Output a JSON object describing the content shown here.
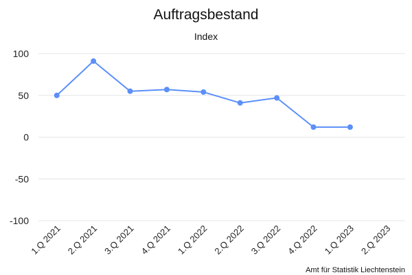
{
  "chart_data": {
    "type": "line",
    "title": "Auftragsbestand",
    "subtitle": "Index",
    "categories": [
      "1.Q 2021",
      "2.Q 2021",
      "3.Q 2021",
      "4.Q 2021",
      "1.Q 2022",
      "2.Q 2022",
      "3.Q 2022",
      "4.Q 2022",
      "1.Q 2023",
      "2.Q 2023"
    ],
    "series": [
      {
        "values": [
          50,
          91,
          55,
          57,
          54,
          41,
          47,
          12,
          12,
          null
        ]
      }
    ],
    "ylim": [
      -100,
      100
    ],
    "yticks": [
      100,
      50,
      0,
      -50,
      -100
    ],
    "grid": true,
    "legend": "none",
    "colors": {
      "series": "#5b8ff9",
      "grid": "#e4e4e4"
    },
    "credit": "Amt für Statistik Liechtenstein"
  }
}
